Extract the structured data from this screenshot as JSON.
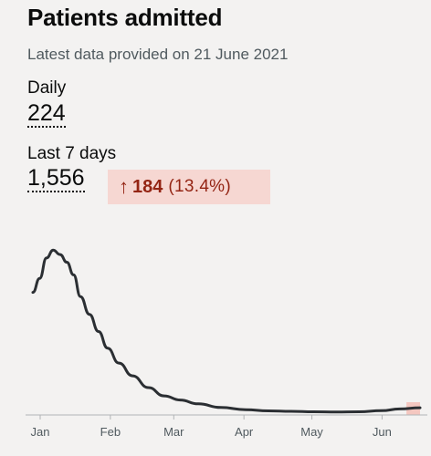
{
  "header": {
    "title": "Patients admitted",
    "subtitle": "Latest data provided on 21 June 2021"
  },
  "metrics": {
    "daily_label": "Daily",
    "daily_value": "224",
    "week_label": "Last 7 days",
    "week_value": "1,556",
    "change_arrow": "↑",
    "change_value": "184",
    "change_percent": "(13.4%)"
  },
  "colors": {
    "line": "#2b2f33",
    "change_bg": "#f6d7d2",
    "change_text": "#942514",
    "recent_highlight": "#f4c7c0"
  },
  "chart_data": {
    "type": "line",
    "xlabels": [
      "Jan",
      "Feb",
      "Mar",
      "Apr",
      "May",
      "Jun"
    ],
    "x": [
      "2021-01-01",
      "2021-01-04",
      "2021-01-07",
      "2021-01-10",
      "2021-01-13",
      "2021-01-16",
      "2021-01-19",
      "2021-01-22",
      "2021-01-26",
      "2021-01-30",
      "2021-02-03",
      "2021-02-08",
      "2021-02-14",
      "2021-02-21",
      "2021-02-28",
      "2021-03-07",
      "2021-03-15",
      "2021-03-25",
      "2021-04-05",
      "2021-04-15",
      "2021-04-25",
      "2021-05-05",
      "2021-05-15",
      "2021-05-25",
      "2021-06-04",
      "2021-06-12",
      "2021-06-21"
    ],
    "values": [
      3850,
      4290,
      4930,
      5180,
      5040,
      4800,
      4400,
      3720,
      3160,
      2620,
      2100,
      1630,
      1230,
      860,
      600,
      470,
      350,
      235,
      165,
      130,
      115,
      100,
      92,
      100,
      135,
      190,
      225
    ],
    "ylim": [
      0,
      5300
    ],
    "grid": false,
    "legend": "none"
  }
}
